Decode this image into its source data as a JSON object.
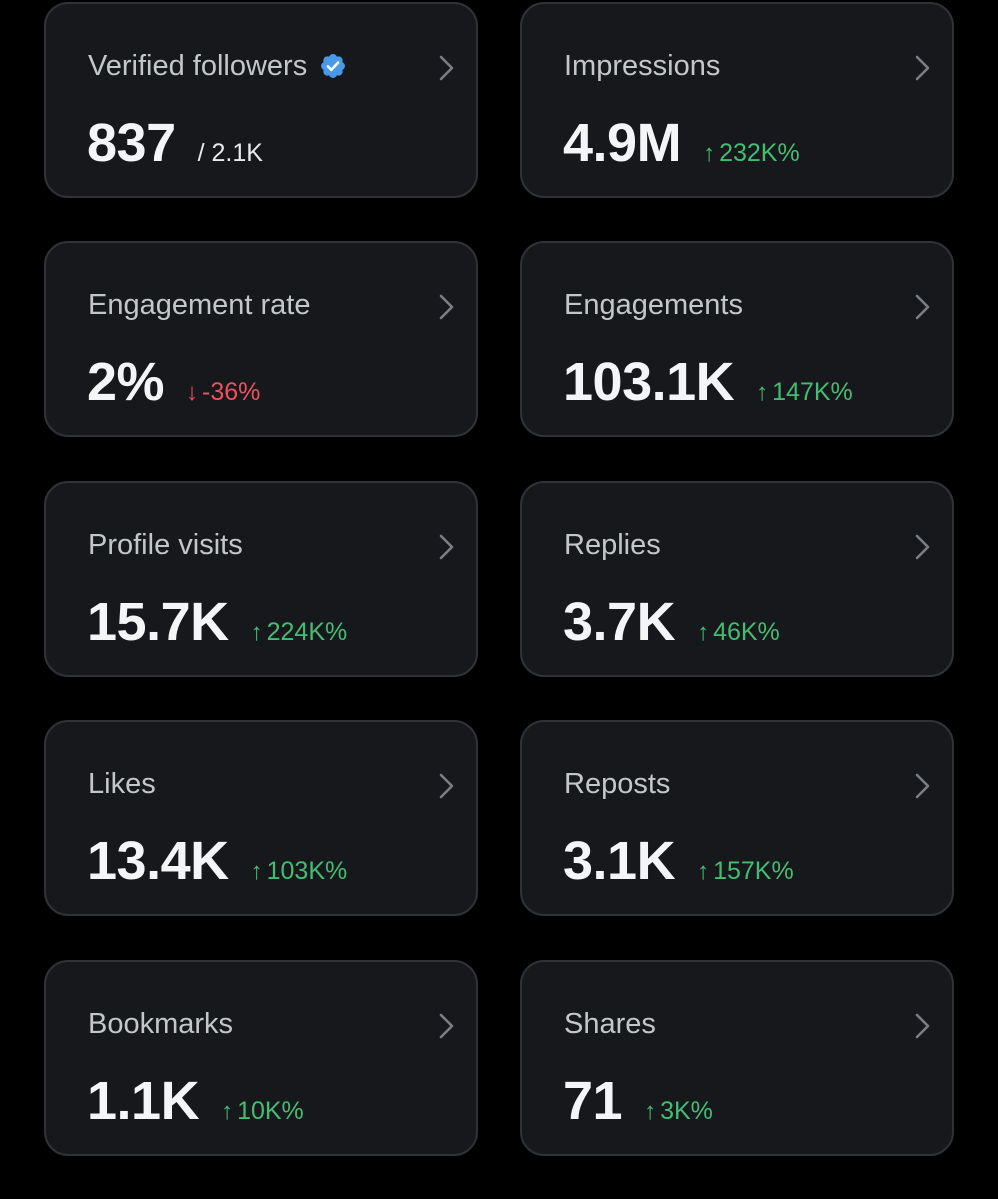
{
  "colors": {
    "background": "#000000",
    "card": "#16181c",
    "card_border": "#2f3336",
    "title": "#c4c7ca",
    "value": "#f4f5f6",
    "positive": "#44bd73",
    "negative": "#f0505c",
    "verified": "#4a99e9"
  },
  "cards": [
    {
      "title": "Verified followers",
      "value": "837",
      "sub": "/ 2.1K",
      "icon": "verified-badge-icon"
    },
    {
      "title": "Impressions",
      "value": "4.9M",
      "delta": "232K%",
      "trend": "up"
    },
    {
      "title": "Engagement rate",
      "value": "2%",
      "delta": "-36%",
      "trend": "down"
    },
    {
      "title": "Engagements",
      "value": "103.1K",
      "delta": "147K%",
      "trend": "up"
    },
    {
      "title": "Profile visits",
      "value": "15.7K",
      "delta": "224K%",
      "trend": "up"
    },
    {
      "title": "Replies",
      "value": "3.7K",
      "delta": "46K%",
      "trend": "up"
    },
    {
      "title": "Likes",
      "value": "13.4K",
      "delta": "103K%",
      "trend": "up"
    },
    {
      "title": "Reposts",
      "value": "3.1K",
      "delta": "157K%",
      "trend": "up"
    },
    {
      "title": "Bookmarks",
      "value": "1.1K",
      "delta": "10K%",
      "trend": "up"
    },
    {
      "title": "Shares",
      "value": "71",
      "delta": "3K%",
      "trend": "up"
    }
  ]
}
